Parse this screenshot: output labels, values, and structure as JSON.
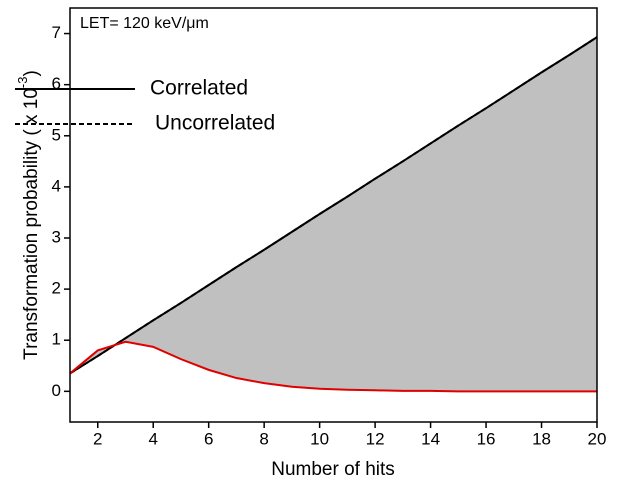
{
  "chart_data": {
    "type": "line",
    "annotation": "LET= 120 keV/μm",
    "x_label": "Number of hits",
    "y_label": "Transformation probability ( x 10",
    "y_label_sup": "-3",
    "y_label_end": ")",
    "x": [
      1,
      2,
      3,
      4,
      5,
      6,
      7,
      8,
      9,
      10,
      11,
      12,
      13,
      14,
      15,
      16,
      17,
      18,
      19,
      20
    ],
    "series": [
      {
        "name": "Correlated",
        "color": "#000000",
        "dash": false,
        "values": [
          0.35,
          0.69,
          1.04,
          1.39,
          1.73,
          2.08,
          2.43,
          2.77,
          3.12,
          3.47,
          3.81,
          4.16,
          4.5,
          4.85,
          5.2,
          5.54,
          5.89,
          6.24,
          6.58,
          6.93
        ]
      },
      {
        "name": "Uncorrelated",
        "color": "#000000",
        "dash": true,
        "values": [
          0.35,
          0.69,
          1.04,
          1.39,
          1.73,
          2.08,
          2.43,
          2.77,
          3.12,
          3.47,
          3.81,
          4.16,
          4.5,
          4.85,
          5.2,
          5.54,
          5.89,
          6.24,
          6.58,
          6.93
        ]
      },
      {
        "color": "#e00000",
        "dash": false,
        "values": [
          0.35,
          0.8,
          0.97,
          0.87,
          0.63,
          0.42,
          0.26,
          0.16,
          0.09,
          0.05,
          0.03,
          0.02,
          0.01,
          0.01,
          0,
          0,
          0,
          0,
          0,
          0
        ]
      }
    ],
    "fill_between": true,
    "fill_color": "#c0c0c0",
    "xlim": [
      1,
      20
    ],
    "xticks": [
      2,
      4,
      6,
      8,
      10,
      12,
      14,
      16,
      18,
      20
    ],
    "ylim": [
      -0.6,
      7.5
    ],
    "yticks": [
      0,
      1,
      2,
      3,
      4,
      5,
      6,
      7
    ]
  }
}
